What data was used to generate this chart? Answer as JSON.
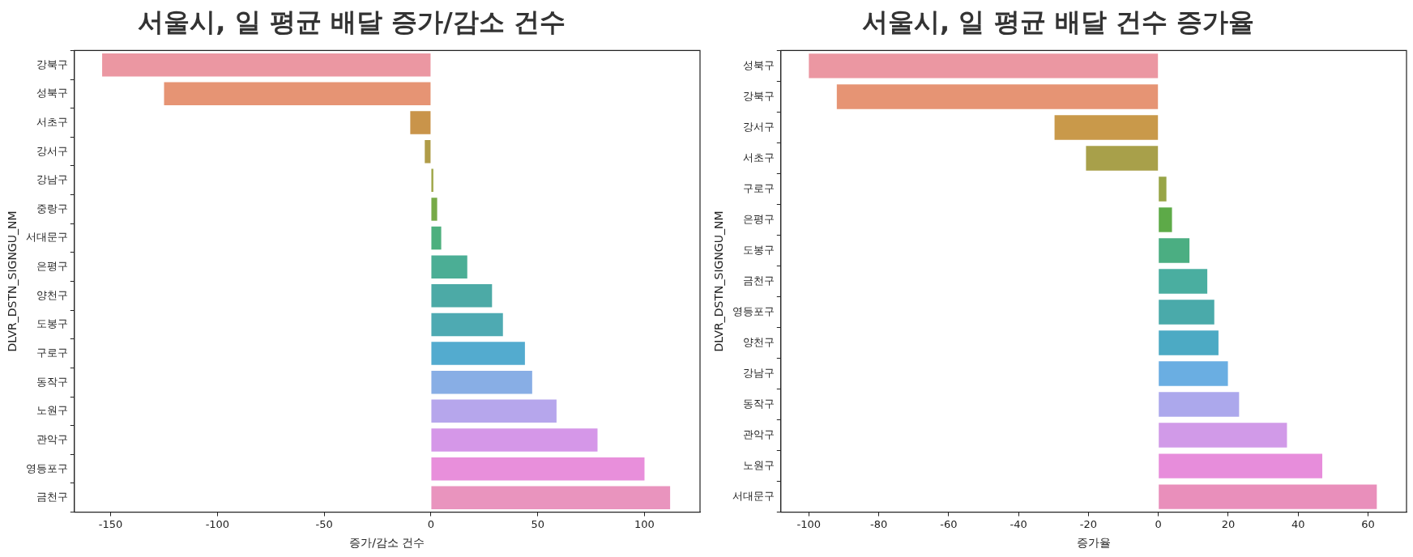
{
  "chart_data": [
    {
      "type": "bar",
      "orientation": "horizontal",
      "title": "서울시, 일 평균 배달 증가/감소 건수",
      "xlabel": "증가/감소 건수",
      "ylabel": "DLVR_DSTN_SIGNGU_NM",
      "categories": [
        "강북구",
        "성북구",
        "서초구",
        "강서구",
        "강남구",
        "중랑구",
        "서대문구",
        "은평구",
        "양천구",
        "도봉구",
        "구로구",
        "동작구",
        "노원구",
        "관악구",
        "영등포구",
        "금천구"
      ],
      "values": [
        -154,
        -125,
        -9.7,
        -2.9,
        1.1,
        2.9,
        4.8,
        17,
        28.6,
        33.7,
        44,
        47.4,
        58.8,
        78,
        100,
        112
      ],
      "colors": [
        "#eb97a2",
        "#e69474",
        "#c9944a",
        "#b09c48",
        "#9da544",
        "#77aa48",
        "#4db07e",
        "#4bae95",
        "#4caaa6",
        "#4eaab2",
        "#53abcf",
        "#88aee5",
        "#b6a6ec",
        "#d597e8",
        "#e88fdb",
        "#e994be"
      ],
      "xlim": [
        -167,
        126
      ],
      "xticks": [
        -150,
        -100,
        -50,
        0,
        50,
        100
      ]
    },
    {
      "type": "bar",
      "orientation": "horizontal",
      "title": "서울시, 일 평균 배달 건수 증가율",
      "xlabel": "증가율",
      "ylabel": "DLVR_DSTN_SIGNGU_NM",
      "categories": [
        "성북구",
        "강북구",
        "강서구",
        "서초구",
        "구로구",
        "은평구",
        "도봉구",
        "금천구",
        "영등포구",
        "양천구",
        "강남구",
        "동작구",
        "관악구",
        "노원구",
        "서대문구"
      ],
      "values": [
        -100,
        -92,
        -29.7,
        -20.7,
        2.3,
        3.9,
        8.9,
        14,
        16,
        17.2,
        19.9,
        23.1,
        36.8,
        46.9,
        62.5
      ],
      "colors": [
        "#eb97a2",
        "#e69474",
        "#c9994a",
        "#a8a04a",
        "#98a547",
        "#5daa48",
        "#4bae82",
        "#4aaea0",
        "#4aaaaa",
        "#4caac4",
        "#6aaee2",
        "#aca8ec",
        "#d19ae8",
        "#e78ddb",
        "#e98fbb"
      ],
      "xlim": [
        -108,
        71
      ],
      "xticks": [
        -100,
        -80,
        -60,
        -40,
        -20,
        0,
        20,
        40,
        60
      ]
    }
  ]
}
